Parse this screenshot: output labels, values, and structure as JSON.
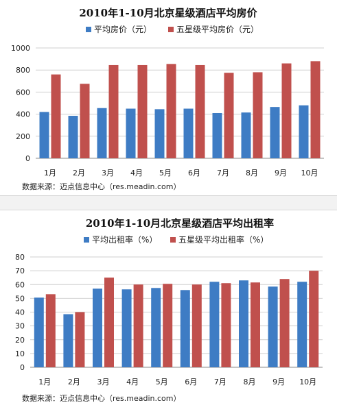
{
  "colors": {
    "series_1": "#3E7CC4",
    "series_2": "#C0504D"
  },
  "chart_data": [
    {
      "type": "bar",
      "title": "2010年1-10月北京星级酒店平均房价",
      "categories": [
        "1月",
        "2月",
        "3月",
        "4月",
        "5月",
        "6月",
        "7月",
        "8月",
        "9月",
        "10月"
      ],
      "series": [
        {
          "name": "平均房价（元）",
          "values": [
            420,
            385,
            455,
            450,
            445,
            450,
            410,
            415,
            465,
            480
          ]
        },
        {
          "name": "五星级平均房价（元）",
          "values": [
            760,
            675,
            845,
            845,
            855,
            845,
            775,
            780,
            860,
            880
          ]
        }
      ],
      "ylim": [
        0,
        1000
      ],
      "yticks": [
        0,
        200,
        400,
        600,
        800,
        1000
      ],
      "grid": true,
      "legend": "top",
      "source": "数据来源：迈点信息中心（res.meadin.com）"
    },
    {
      "type": "bar",
      "title": "2010年1-10月北京星级酒店平均出租率",
      "categories": [
        "1月",
        "2月",
        "3月",
        "4月",
        "5月",
        "6月",
        "7月",
        "8月",
        "9月",
        "10月"
      ],
      "series": [
        {
          "name": "平均出租率（%）",
          "values": [
            50.5,
            38.5,
            57,
            56.5,
            57.5,
            56,
            62,
            63,
            58.5,
            62
          ]
        },
        {
          "name": "五星级平均出租率（%）",
          "values": [
            53,
            40,
            65,
            60,
            60.5,
            60,
            61,
            61.5,
            64,
            70
          ]
        }
      ],
      "ylim": [
        0,
        80
      ],
      "yticks": [
        0,
        10,
        20,
        30,
        40,
        50,
        60,
        70,
        80
      ],
      "grid": true,
      "legend": "top",
      "source": "数据来源：迈点信息中心（res.meadin.com）"
    }
  ]
}
